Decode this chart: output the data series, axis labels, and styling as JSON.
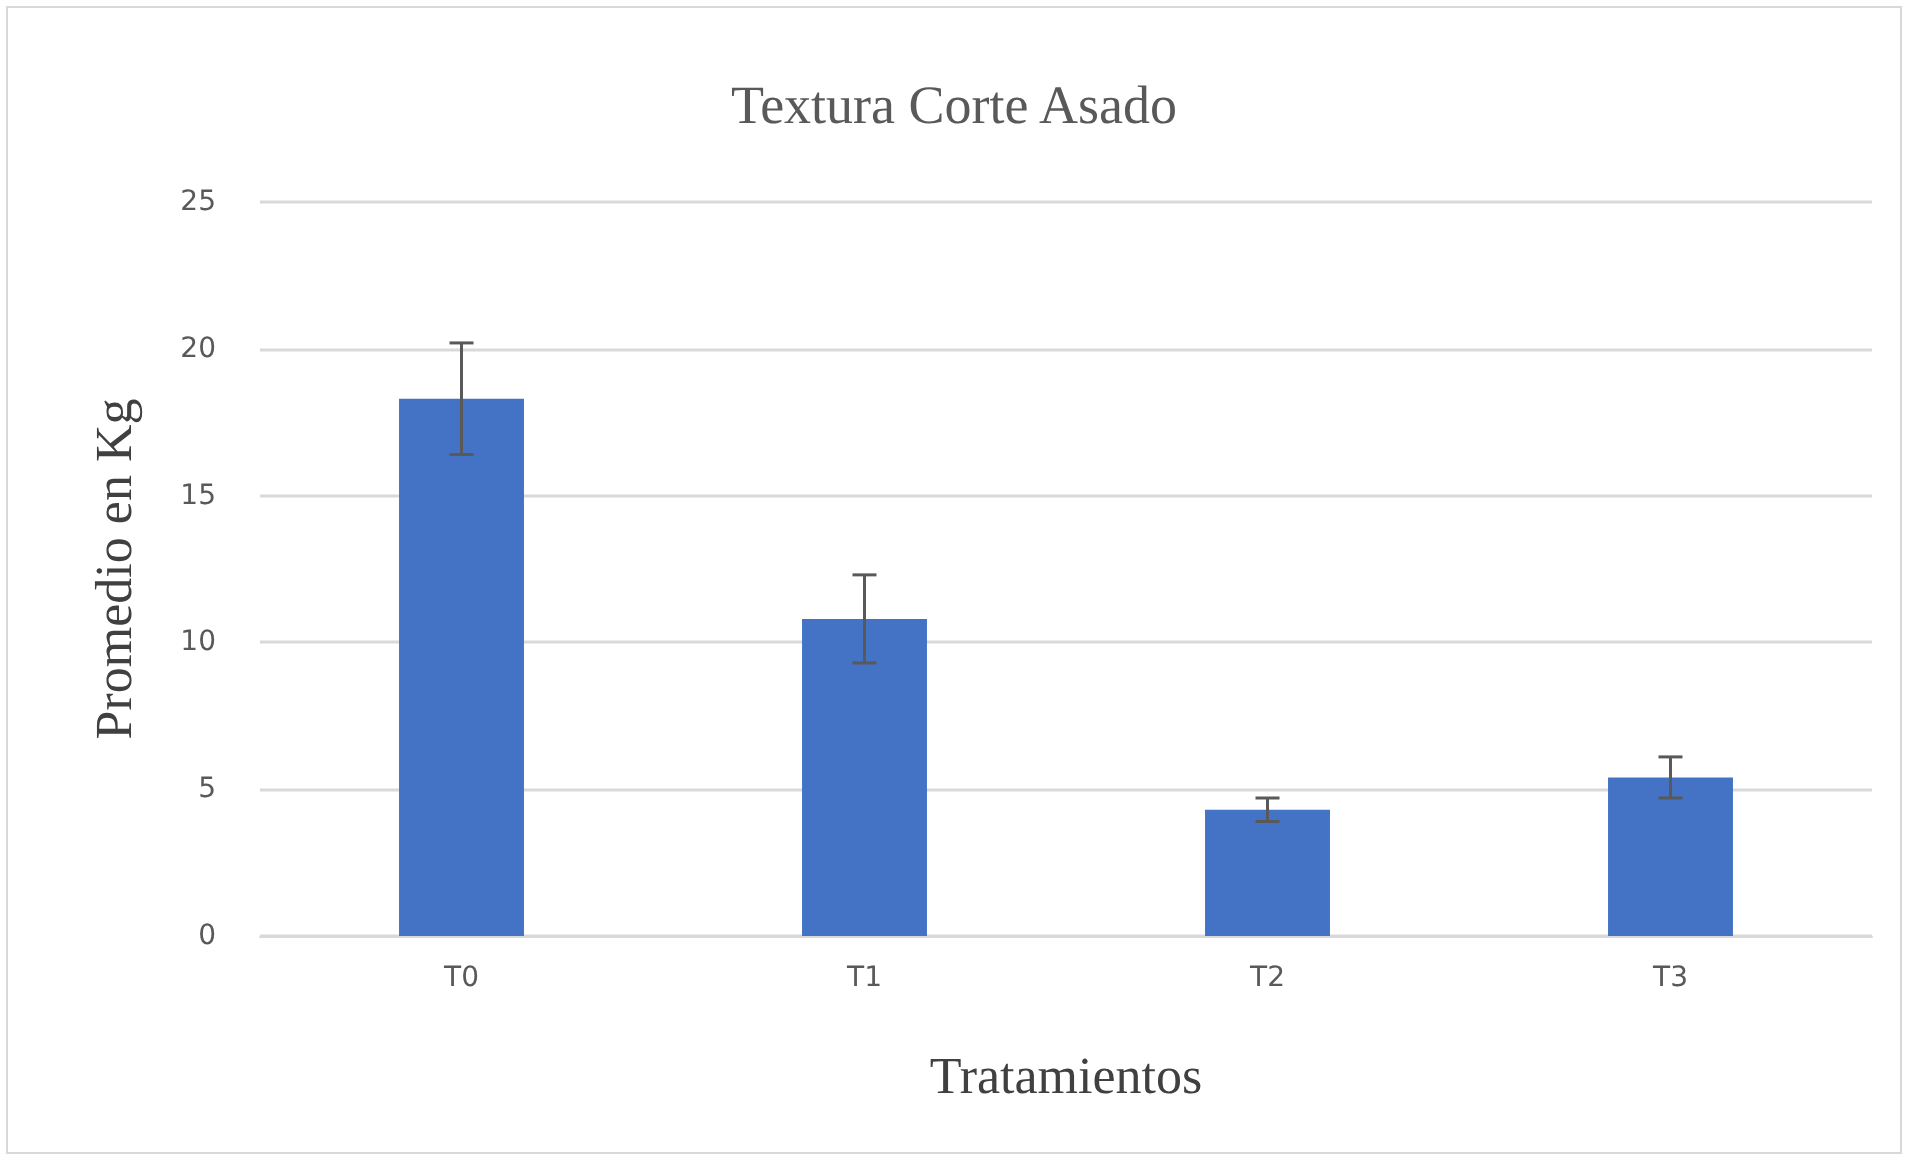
{
  "chart_data": {
    "type": "bar",
    "title": "Textura Corte Asado",
    "xlabel": "Tratamientos",
    "ylabel": "Promedio en Kg",
    "categories": [
      "T0",
      "T1",
      "T2",
      "T3"
    ],
    "values": [
      18.3,
      10.8,
      4.3,
      5.4
    ],
    "errors": [
      1.9,
      1.5,
      0.4,
      0.7
    ],
    "color": "#4472c4",
    "ylim": [
      0,
      25
    ],
    "yticks": [
      0,
      5,
      10,
      15,
      20,
      25
    ],
    "grid": "y"
  }
}
